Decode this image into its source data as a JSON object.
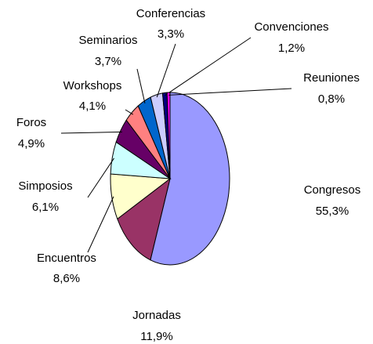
{
  "chart_data": {
    "type": "pie",
    "categories": [
      "Congresos",
      "Jornadas",
      "Encuentros",
      "Simposios",
      "Foros",
      "Workshops",
      "Seminarios",
      "Conferencias",
      "Convenciones",
      "Reuniones"
    ],
    "values": [
      55.3,
      11.9,
      8.6,
      6.1,
      4.9,
      4.1,
      3.7,
      3.3,
      1.2,
      0.8
    ],
    "value_labels": [
      "55,3%",
      "11,9%",
      "8,6%",
      "6,1%",
      "4,9%",
      "4,1%",
      "3,7%",
      "3,3%",
      "1,2%",
      "0,8%"
    ],
    "colors": [
      "#9999ff",
      "#993366",
      "#ffffcc",
      "#ccffff",
      "#660066",
      "#ff8080",
      "#0066cc",
      "#ccccff",
      "#000080",
      "#ff00ff"
    ]
  }
}
